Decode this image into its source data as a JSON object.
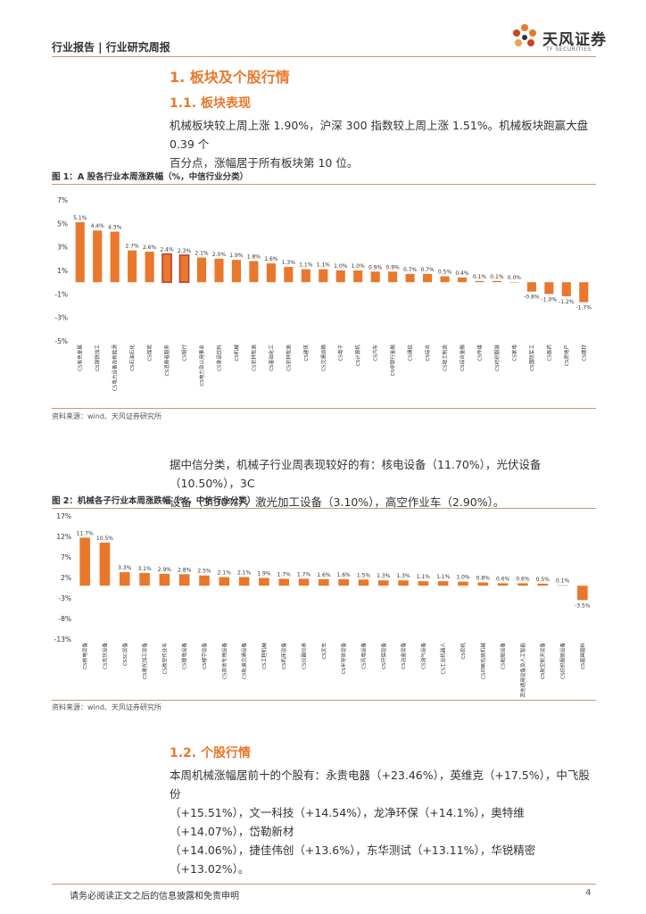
{
  "header": {
    "title": "行业报告 | 行业研究周报",
    "logo_cn": "天风证券",
    "logo_en": "TF SECURITIES",
    "brand_color": "#e9782c"
  },
  "section": {
    "h1": "1. 板块及个股行情",
    "h2_1": "1.1. 板块表现",
    "para1_line1": "机械板块较上周上涨 1.90%，沪深 300 指数较上周上涨 1.51%。机械板块跑赢大盘 0.39 个",
    "para1_line2": "百分点，涨幅居于所有板块第 10 位。",
    "para2_line1": "据中信分类，机械子行业周表现较好的有：核电设备（11.70%），光伏设备（10.50%），3C",
    "para2_line2": "设备（3.30%），激光加工设备（3.10%），高空作业车（2.90%）。",
    "h2_2": "1.2. 个股行情",
    "para3_line1": "本周机械涨幅居前十的个股有：永贵电器（+23.46%），英维克（+17.5%），中飞股份",
    "para3_line2": "（+15.51%），文一科技（+14.54%），龙净环保（+14.1%），奥特维（+14.07%），岱勒新材",
    "para3_line3": "（+14.06%），捷佳伟创（+13.6%），东华测试（+13.11%），华锐精密（+13.02%）。"
  },
  "figure1": {
    "title": "图 1：A 股各行业本周涨跌幅（%，中信行业分类）",
    "source": "资料来源：wind、天风证券研究所"
  },
  "figure2": {
    "title": "图 2：机械各子行业本周涨跌幅（%，中信行业分类）",
    "source": "资料来源：wind、天风证券研究所"
  },
  "footer": {
    "disclaimer": "请务必阅读正文之后的信息披露和免责申明",
    "page": "4"
  },
  "chart_data": [
    {
      "type": "bar",
      "title": "图 1：A 股各行业本周涨跌幅（%，中信行业分类）",
      "yticks": [
        "7%",
        "5%",
        "3%",
        "1%",
        "-1%",
        "-3%",
        "-5%"
      ],
      "ylim": [
        -5,
        7
      ],
      "tick_values": [
        7,
        5,
        3,
        1,
        -1,
        -3,
        -5
      ],
      "color": "#e9782c",
      "highlight_color": "#c0392b",
      "categories": [
        "CS有色金属",
        "CS钢铁加工",
        "CS电力设备及新能源",
        "CS石油石化",
        "CS煤炭",
        "CS消费者服务",
        "CS银行",
        "CS电力及公用事业",
        "CS食品饮料",
        "CS机械",
        "CS农林牧渔",
        "CS基础化工",
        "CS农林牧渔",
        "CS建筑",
        "CS交通运输",
        "CS电子",
        "CS计算机",
        "CS汽车",
        "CS非银行金融",
        "CS通信",
        "CS综合",
        "CS轻工制造",
        "CS综合金融",
        "CS传媒",
        "CS纺织服装",
        "CS家电",
        "CS国防军工",
        "CS医药",
        "CS房地产",
        "CS建材"
      ],
      "values": [
        5.1,
        4.4,
        4.3,
        2.7,
        2.6,
        2.4,
        2.3,
        2.1,
        2.0,
        1.9,
        1.8,
        1.6,
        1.3,
        1.1,
        1.1,
        1.0,
        1.0,
        0.9,
        0.9,
        0.7,
        0.7,
        0.5,
        0.4,
        0.1,
        0.1,
        0.0,
        -0.8,
        -1.0,
        -1.2,
        -1.7
      ],
      "labels": [
        "5.1%",
        "4.4%",
        "4.3%",
        "2.7%",
        "2.6%",
        "2.4%",
        "2.3%",
        "2.1%",
        "2.0%",
        "1.9%",
        "1.8%",
        "1.6%",
        "1.3%",
        "1.1%",
        "1.1%",
        "1.0%",
        "1.0%",
        "0.9%",
        "0.9%",
        "0.7%",
        "0.7%",
        "0.5%",
        "0.4%",
        "0.1%",
        "0.1%",
        "0.0%",
        "-0.8%",
        "-1.0%",
        "-1.2%",
        "-1.7%"
      ],
      "highlight": [
        5,
        6
      ]
    },
    {
      "type": "bar",
      "title": "图 2：机械各子行业本周涨跌幅（%，中信行业分类）",
      "yticks": [
        "17%",
        "12%",
        "7%",
        "2%",
        "-3%",
        "-8%",
        "-13%"
      ],
      "ylim": [
        -13,
        17
      ],
      "tick_values": [
        17,
        12,
        7,
        2,
        -3,
        -8,
        -13
      ],
      "color": "#e9782c",
      "highlight_color": "#e9782c",
      "categories": [
        "CS核电设备",
        "CS光伏设备",
        "CS3C设备",
        "CS激光加工设备",
        "CS高空作业车",
        "CS锂电设备",
        "CS楼宇设备",
        "CS其他专用设备",
        "CS轨道交通设备",
        "CS工程机械",
        "CS机床设备",
        "CS仪器仪表",
        "CS叉车",
        "CS半导体设备",
        "CS风电设备",
        "CS环保设备",
        "CS冶金设备",
        "CS油气设备",
        "CS工业机器人",
        "CS农机",
        "CS印刷包装机械",
        "CS船舶设备",
        "CS其他通用设备及人工智能",
        "CS航空航天设备",
        "CS纺织服装设备",
        "CS磨具磨料"
      ],
      "values": [
        11.7,
        10.5,
        3.3,
        3.1,
        2.9,
        2.8,
        2.5,
        2.1,
        2.1,
        1.9,
        1.7,
        1.7,
        1.6,
        1.6,
        1.5,
        1.3,
        1.3,
        1.1,
        1.1,
        1.0,
        0.8,
        0.6,
        0.6,
        0.5,
        0.1,
        -3.5
      ],
      "labels": [
        "11.7%",
        "10.5%",
        "3.3%",
        "3.1%",
        "2.9%",
        "2.8%",
        "2.5%",
        "2.1%",
        "2.1%",
        "1.9%",
        "1.7%",
        "1.7%",
        "1.6%",
        "1.6%",
        "1.5%",
        "1.3%",
        "1.3%",
        "1.1%",
        "1.1%",
        "1.0%",
        "0.8%",
        "0.6%",
        "0.6%",
        "0.5%",
        "0.1%",
        "-3.5%"
      ],
      "highlight": []
    }
  ]
}
